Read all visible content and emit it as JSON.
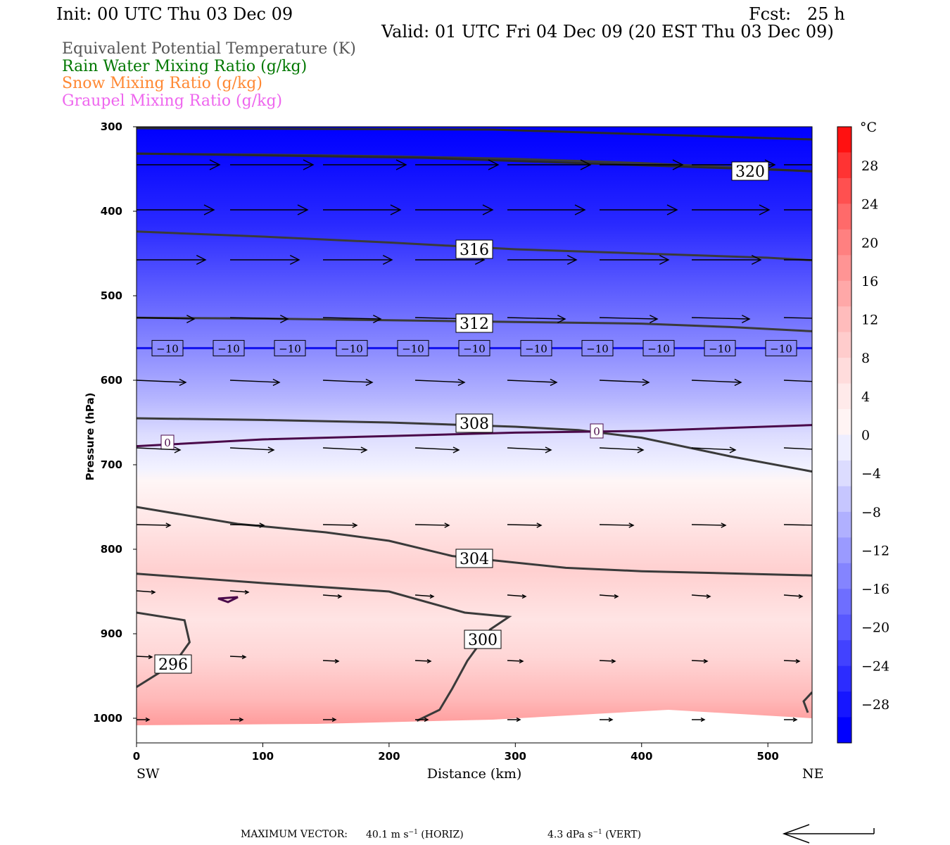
{
  "header": {
    "init": "Init: 00 UTC Thu 03 Dec 09",
    "fcst": "Fcst:   25 h",
    "valid": "Valid: 01 UTC Fri 04 Dec 09 (20 EST Thu 03 Dec 09)"
  },
  "legend": [
    {
      "label": "Equivalent Potential Temperature (K)",
      "color": "#555555"
    },
    {
      "label": "Rain Water Mixing Ratio (g/kg)",
      "color": "#007700"
    },
    {
      "label": "Snow Mixing Ratio (g/kg)",
      "color": "#ff8833"
    },
    {
      "label": "Graupel Mixing Ratio (g/kg)",
      "color": "#ee66ee"
    }
  ],
  "axes": {
    "y_label": "Pressure (hPa)",
    "y_ticks": [
      "300",
      "400",
      "500",
      "600",
      "700",
      "800",
      "900",
      "1000"
    ],
    "y_range": [
      300,
      1030
    ],
    "x_label": "Distance (km)",
    "x_ticks": [
      "0",
      "100",
      "200",
      "300",
      "400",
      "500"
    ],
    "x_range": [
      0,
      535
    ],
    "x_left_end": "SW",
    "x_right_end": "NE"
  },
  "colorbar": {
    "unit": "°C",
    "labels": [
      "28",
      "24",
      "20",
      "16",
      "12",
      "8",
      "4",
      "0",
      "−4",
      "−8",
      "−12",
      "−16",
      "−20",
      "−24",
      "−28"
    ],
    "colors_top_to_bottom": [
      "#ff1111",
      "#ff3333",
      "#ff5050",
      "#ff6a6a",
      "#ff8080",
      "#ff9494",
      "#ffa8a8",
      "#ffbcbc",
      "#ffcccc",
      "#ffdcdc",
      "#ffeaea",
      "#fff4f4",
      "#eeeeff",
      "#dcdcff",
      "#c6c6ff",
      "#b0b0ff",
      "#9a9aff",
      "#8484ff",
      "#6e6eff",
      "#5858ff",
      "#4242ff",
      "#2c2cff",
      "#1616ff",
      "#0000ff"
    ]
  },
  "chart_data": {
    "type": "cross-section",
    "theta_e_contours": [
      {
        "value": "320",
        "points": [
          [
            0,
            332
          ],
          [
            100,
            333
          ],
          [
            200,
            335
          ],
          [
            300,
            338
          ],
          [
            400,
            343
          ],
          [
            500,
            350
          ],
          [
            535,
            353
          ]
        ]
      },
      {
        "value": "316",
        "points": [
          [
            0,
            424
          ],
          [
            100,
            430
          ],
          [
            200,
            437
          ],
          [
            300,
            445
          ],
          [
            400,
            450
          ],
          [
            500,
            455
          ],
          [
            535,
            458
          ]
        ]
      },
      {
        "value": "312",
        "points": [
          [
            0,
            526
          ],
          [
            100,
            527
          ],
          [
            200,
            529
          ],
          [
            300,
            531
          ],
          [
            400,
            533
          ],
          [
            470,
            537
          ],
          [
            535,
            542
          ]
        ]
      },
      {
        "value": "308",
        "points": [
          [
            0,
            645
          ],
          [
            100,
            647
          ],
          [
            200,
            650
          ],
          [
            300,
            655
          ],
          [
            350,
            659
          ],
          [
            400,
            668
          ],
          [
            470,
            690
          ],
          [
            535,
            708
          ]
        ]
      },
      {
        "value": "304",
        "points": [
          [
            0,
            750
          ],
          [
            80,
            770
          ],
          [
            150,
            780
          ],
          [
            200,
            790
          ],
          [
            250,
            808
          ],
          [
            340,
            822
          ],
          [
            400,
            826
          ],
          [
            535,
            831
          ]
        ]
      },
      {
        "value": "300",
        "points": [
          [
            0,
            829
          ],
          [
            100,
            840
          ],
          [
            200,
            850
          ],
          [
            260,
            875
          ],
          [
            295,
            880
          ],
          [
            280,
            895
          ],
          [
            262,
            932
          ],
          [
            250,
            965
          ],
          [
            240,
            990
          ],
          [
            222,
            1003
          ]
        ]
      },
      {
        "value": "296",
        "points": [
          [
            0,
            875
          ],
          [
            38,
            884
          ],
          [
            42,
            910
          ],
          [
            30,
            935
          ],
          [
            0,
            963
          ]
        ]
      }
    ],
    "temperature_contours": [
      {
        "value": "−10",
        "pressure": 562
      },
      {
        "value": "0",
        "points": [
          [
            0,
            678
          ],
          [
            100,
            670
          ],
          [
            200,
            666
          ],
          [
            300,
            662
          ],
          [
            400,
            660
          ],
          [
            535,
            653
          ]
        ]
      }
    ],
    "temperature_levels_c": [
      -28,
      -24,
      -20,
      -16,
      -12,
      -8,
      -4,
      0,
      4,
      8,
      12,
      16,
      20,
      24,
      28
    ],
    "wind_vectors": "horizontal/vertical circulation vectors at grid points"
  },
  "footer": {
    "max_vector_label": "MAXIMUM VECTOR:",
    "horiz_value": "40.1",
    "horiz_unit_prefix": "m s",
    "horiz_exp": "−1",
    "horiz_tag": "(HORIZ)",
    "vert_value": "4.3",
    "vert_unit_prefix": "dPa s",
    "vert_exp": "−1",
    "vert_tag": "(VERT)"
  }
}
